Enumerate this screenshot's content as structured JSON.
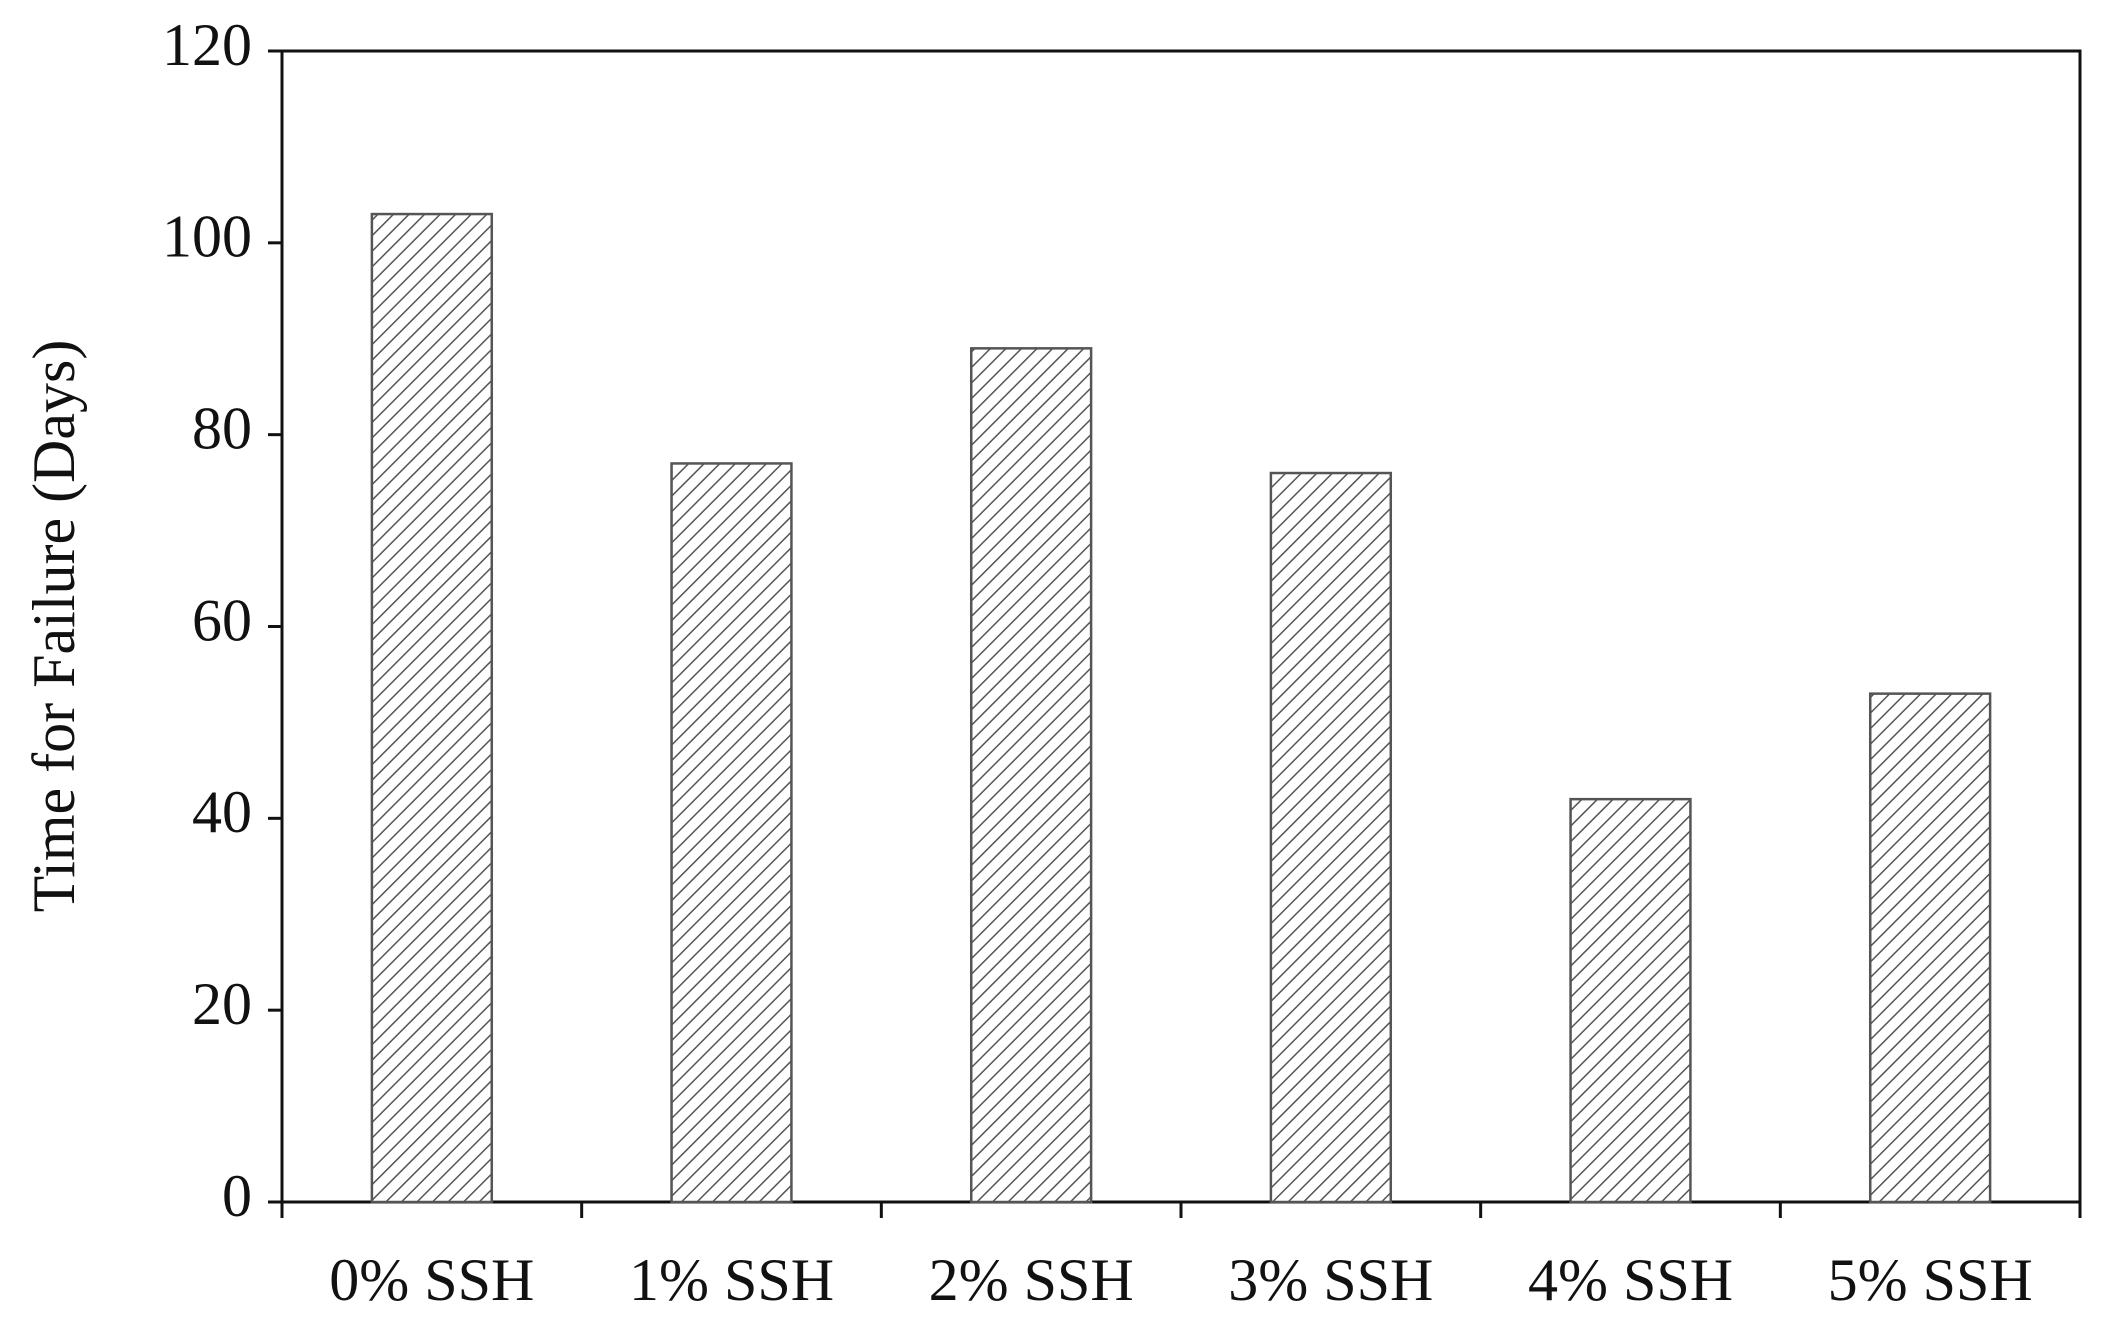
{
  "chart_data": {
    "type": "bar",
    "y_label": "Time for Failure (Days)",
    "categories": [
      "0% SSH",
      "1% SSH",
      "2% SSH",
      "3% SSH",
      "4% SSH",
      "5% SSH"
    ],
    "values": [
      103,
      77,
      89,
      76,
      42,
      53
    ],
    "color": "#555555",
    "ylim": [
      0,
      120
    ],
    "yticks": [
      0,
      20,
      40,
      60,
      80,
      100,
      120
    ],
    "grid": false
  }
}
